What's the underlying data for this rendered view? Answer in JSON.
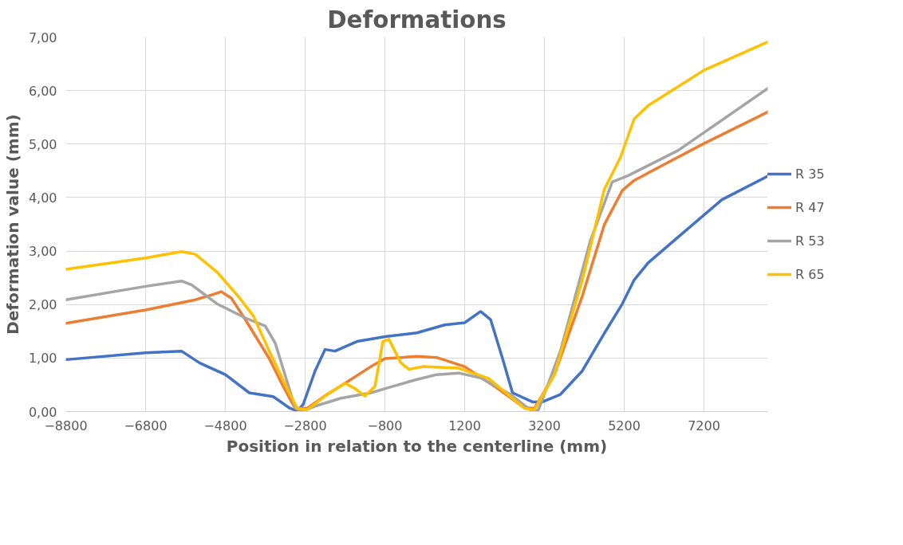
{
  "chart_data": {
    "type": "line",
    "title": "Deformations",
    "xlabel": "Position in relation to the centerline (mm)",
    "ylabel": "Deformation value (mm)",
    "xlim": [
      -8800,
      8800
    ],
    "xticks": [
      -8800,
      -6800,
      -4800,
      -2800,
      -800,
      1200,
      3200,
      5200,
      7200
    ],
    "ylim": [
      0,
      7
    ],
    "yticks": [
      {
        "value": 0,
        "label": "0,00"
      },
      {
        "value": 1,
        "label": "1,00"
      },
      {
        "value": 2,
        "label": "2,00"
      },
      {
        "value": 3,
        "label": "3,00"
      },
      {
        "value": 4,
        "label": "4,00"
      },
      {
        "value": 5,
        "label": "5,00"
      },
      {
        "value": 6,
        "label": "6,00"
      },
      {
        "value": 7,
        "label": "7,00"
      }
    ],
    "grid": true,
    "legend": "right",
    "line_style": "solid",
    "marker": "none",
    "series": [
      {
        "name": "R 35",
        "color": "#4472c4",
        "x": [
          -8800,
          -6800,
          -5900,
          -5450,
          -4800,
          -4200,
          -3600,
          -3200,
          -3000,
          -2850,
          -2550,
          -2300,
          -2050,
          -1500,
          -800,
          0,
          700,
          1200,
          1600,
          1850,
          2150,
          2400,
          2900,
          3150,
          3600,
          4150,
          4700,
          5150,
          5450,
          5800,
          6550,
          7650,
          8800
        ],
        "values": [
          0.97,
          1.1,
          1.13,
          0.91,
          0.69,
          0.35,
          0.28,
          0.07,
          0.01,
          0.13,
          0.76,
          1.16,
          1.13,
          1.31,
          1.4,
          1.47,
          1.62,
          1.66,
          1.87,
          1.72,
          0.99,
          0.35,
          0.18,
          0.18,
          0.32,
          0.76,
          1.46,
          2.01,
          2.46,
          2.78,
          3.26,
          3.96,
          4.4
        ]
      },
      {
        "name": "R 47",
        "color": "#ed7d31",
        "x": [
          -8800,
          -6800,
          -5550,
          -5100,
          -4900,
          -4650,
          -4300,
          -3700,
          -3350,
          -3050,
          -2750,
          -2250,
          -1800,
          -1150,
          -800,
          0,
          500,
          1200,
          1950,
          2700,
          2950,
          3450,
          4150,
          4700,
          5150,
          5450,
          6000,
          7200,
          8800
        ],
        "values": [
          1.65,
          1.9,
          2.09,
          2.19,
          2.24,
          2.12,
          1.72,
          0.99,
          0.47,
          0.06,
          0.06,
          0.32,
          0.53,
          0.84,
          0.99,
          1.03,
          1.01,
          0.84,
          0.47,
          0.07,
          0.06,
          0.69,
          2.16,
          3.49,
          4.13,
          4.32,
          4.54,
          5.01,
          5.6
        ]
      },
      {
        "name": "R 53",
        "color": "#a5a5a5",
        "x": [
          -8800,
          -6800,
          -5900,
          -5650,
          -5000,
          -4300,
          -3800,
          -3550,
          -3050,
          -2900,
          -2550,
          -1900,
          -1150,
          -600,
          0,
          500,
          1050,
          1600,
          2350,
          2900,
          3050,
          3600,
          4350,
          4900,
          5300,
          6550,
          8800
        ],
        "values": [
          2.09,
          2.34,
          2.44,
          2.37,
          2.01,
          1.75,
          1.6,
          1.28,
          0.07,
          0.0,
          0.1,
          0.25,
          0.35,
          0.47,
          0.6,
          0.69,
          0.72,
          0.63,
          0.32,
          0.0,
          0.03,
          1.13,
          3.19,
          4.29,
          4.41,
          4.88,
          6.04
        ]
      },
      {
        "name": "R 65",
        "color": "#ffc000",
        "x": [
          -8800,
          -6800,
          -5900,
          -5550,
          -5000,
          -4450,
          -4100,
          -3700,
          -3250,
          -3000,
          -2750,
          -2250,
          -1800,
          -1550,
          -1300,
          -1050,
          -850,
          -700,
          -400,
          -200,
          150,
          1050,
          1800,
          2700,
          2950,
          3450,
          4150,
          4700,
          5100,
          5450,
          5800,
          7200,
          8800
        ],
        "values": [
          2.66,
          2.87,
          2.99,
          2.94,
          2.6,
          2.13,
          1.79,
          1.13,
          0.43,
          0.06,
          0.03,
          0.32,
          0.53,
          0.43,
          0.29,
          0.47,
          1.31,
          1.35,
          0.91,
          0.79,
          0.84,
          0.81,
          0.62,
          0.06,
          0.03,
          0.69,
          2.46,
          4.15,
          4.74,
          5.47,
          5.72,
          6.38,
          6.91
        ]
      }
    ]
  }
}
